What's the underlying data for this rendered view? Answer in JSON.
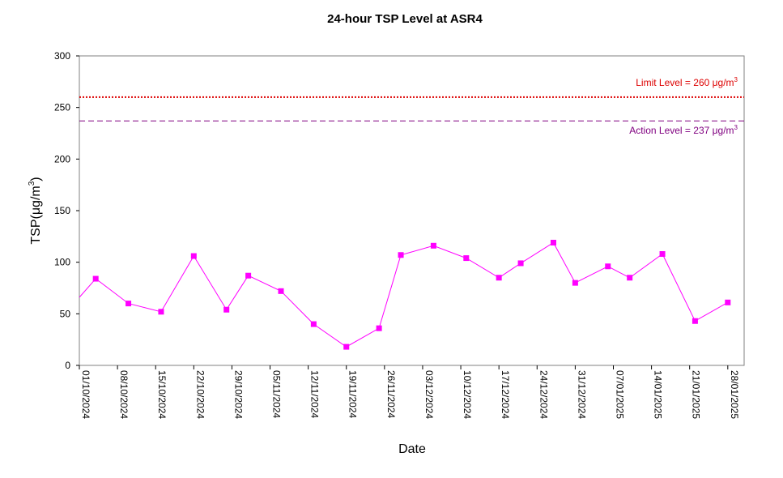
{
  "chart_data": {
    "type": "line",
    "title": "24-hour TSP Level at ASR4",
    "xlabel": "Date",
    "ylabel_main": "TSP(",
    "ylabel_unit": "μg/m",
    "ylabel_sup": "3",
    "ylabel_close": ")",
    "ylim": [
      0,
      300
    ],
    "yticks": [
      "0",
      "50",
      "100",
      "150",
      "200",
      "250",
      "300"
    ],
    "xlim": [
      "2024-10-01",
      "2025-01-31"
    ],
    "xticks": [
      "01/10/2024",
      "08/10/2024",
      "15/10/2024",
      "22/10/2024",
      "29/10/2024",
      "05/11/2024",
      "12/11/2024",
      "19/11/2024",
      "26/11/2024",
      "03/12/2024",
      "10/12/2024",
      "17/12/2024",
      "24/12/2024",
      "31/12/2024",
      "07/01/2025",
      "14/01/2025",
      "21/01/2025",
      "28/01/2025"
    ],
    "grid": false,
    "series": [
      {
        "color": "#ff00ff",
        "marker": "square",
        "x": [
          "2024-10-01",
          "2024-10-04",
          "2024-10-10",
          "2024-10-16",
          "2024-10-22",
          "2024-10-28",
          "2024-11-01",
          "2024-11-07",
          "2024-11-13",
          "2024-11-19",
          "2024-11-25",
          "2024-11-29",
          "2024-12-05",
          "2024-12-11",
          "2024-12-17",
          "2024-12-21",
          "2024-12-27",
          "2024-12-31",
          "2025-01-06",
          "2025-01-10",
          "2025-01-16",
          "2025-01-22",
          "2025-01-28"
        ],
        "values": [
          66,
          84,
          60,
          52,
          106,
          54,
          87,
          72,
          40,
          18,
          36,
          107,
          116,
          104,
          85,
          99,
          119,
          80,
          96,
          85,
          108,
          43,
          61
        ]
      }
    ],
    "reference_lines": [
      {
        "value": 260,
        "label": "Limit Level  = 260 μg/m",
        "label_sup": "3",
        "color": "#dd0000",
        "style": "dotted",
        "label_position": "above"
      },
      {
        "value": 237,
        "label": "Action Level  = 237 μg/m",
        "label_sup": "3",
        "color": "#800080",
        "style": "dashed",
        "label_position": "below"
      }
    ]
  }
}
